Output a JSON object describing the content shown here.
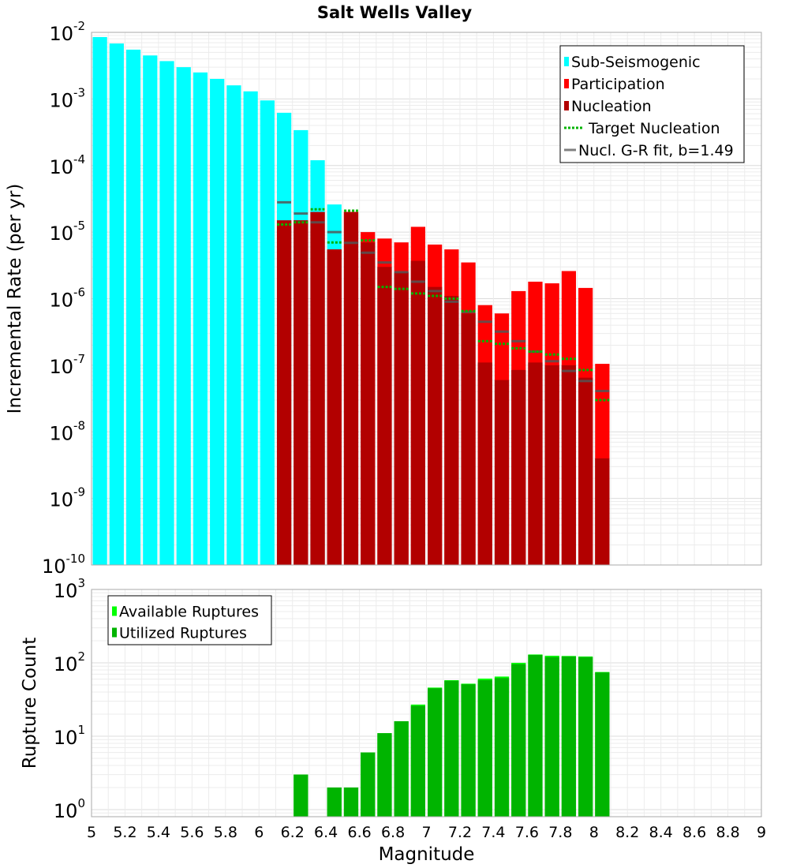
{
  "chart_data": [
    {
      "type": "bar",
      "title": "Salt Wells Valley",
      "xlabel": "Magnitude",
      "ylabel": "Incremental Rate (per yr)",
      "yscale": "log",
      "ylim": [
        1e-10,
        0.01
      ],
      "xlim": [
        5,
        9
      ],
      "bin_width": 0.1,
      "y_ticks": [
        {
          "base": "10",
          "exp": "-10"
        },
        {
          "base": "10",
          "exp": "-9"
        },
        {
          "base": "10",
          "exp": "-8"
        },
        {
          "base": "10",
          "exp": "-7"
        },
        {
          "base": "10",
          "exp": "-6"
        },
        {
          "base": "10",
          "exp": "-5"
        },
        {
          "base": "10",
          "exp": "-4"
        },
        {
          "base": "10",
          "exp": "-3"
        },
        {
          "base": "10",
          "exp": "-2"
        }
      ],
      "legend": [
        {
          "label": "Sub-Seismogenic",
          "color": "#00ffff",
          "kind": "bar"
        },
        {
          "label": "Participation",
          "color": "#ff0000",
          "kind": "bar"
        },
        {
          "label": "Nucleation",
          "color": "#b20000",
          "kind": "bar"
        },
        {
          "label": "Target Nucleation",
          "color": "#00b400",
          "kind": "dotted"
        },
        {
          "label": "Nucl. G-R fit, b=1.49",
          "color": "#808080",
          "kind": "line"
        }
      ],
      "series": [
        {
          "name": "Sub-Seismogenic",
          "color": "#00ffff",
          "x": [
            5.05,
            5.15,
            5.25,
            5.35,
            5.45,
            5.55,
            5.65,
            5.75,
            5.85,
            5.95,
            6.05,
            6.15,
            6.25,
            6.35,
            6.45
          ],
          "values": [
            0.0085,
            0.0068,
            0.0055,
            0.0045,
            0.0037,
            0.003,
            0.0025,
            0.002,
            0.0016,
            0.0013,
            0.00095,
            0.00062,
            0.00034,
            0.00012,
            2.6e-05
          ]
        },
        {
          "name": "Participation",
          "color": "#ff0000",
          "x": [
            6.15,
            6.25,
            6.35,
            6.45,
            6.55,
            6.65,
            6.75,
            6.85,
            6.95,
            7.05,
            7.15,
            7.25,
            7.35,
            7.45,
            7.55,
            7.65,
            7.75,
            7.85,
            7.95,
            8.05
          ],
          "values": [
            1.5e-05,
            1.5e-05,
            2e-05,
            5.5e-06,
            2e-05,
            1e-05,
            8e-06,
            7e-06,
            1.2e-05,
            6.5e-06,
            5.5e-06,
            3.5e-06,
            8e-07,
            6e-07,
            1.3e-06,
            1.8e-06,
            1.7e-06,
            2.6e-06,
            1.45e-06,
            1.05e-07
          ]
        },
        {
          "name": "Nucleation",
          "color": "#b20000",
          "x": [
            6.15,
            6.25,
            6.35,
            6.45,
            6.55,
            6.65,
            6.75,
            6.85,
            6.95,
            7.05,
            7.15,
            7.25,
            7.35,
            7.45,
            7.55,
            7.65,
            7.75,
            7.85,
            7.95,
            8.05
          ],
          "values": [
            1.5e-05,
            1.5e-05,
            2e-05,
            5.5e-06,
            2e-05,
            7e-06,
            3e-06,
            2.5e-06,
            3.7e-06,
            1.5e-06,
            1.1e-06,
            6e-07,
            1.1e-07,
            6e-08,
            8.5e-08,
            1.1e-07,
            1e-07,
            1e-07,
            6.5e-08,
            4e-09
          ]
        },
        {
          "name": "Target Nucleation",
          "color": "#00b400",
          "x": [
            6.15,
            6.25,
            6.35,
            6.45,
            6.55,
            6.65,
            6.75,
            6.85,
            6.95,
            7.05,
            7.15,
            7.25,
            7.35,
            7.45,
            7.55,
            7.65,
            7.75,
            7.85,
            7.95,
            8.05
          ],
          "values": [
            1.3e-05,
            1.4e-05,
            2.2e-05,
            7e-06,
            2.1e-05,
            7.5e-06,
            1.5e-06,
            1.4e-06,
            1.2e-06,
            1.1e-06,
            1e-06,
            6.5e-07,
            2.3e-07,
            2.1e-07,
            1.8e-07,
            1.6e-07,
            1.45e-07,
            1.25e-07,
            8.5e-08,
            3e-08
          ]
        },
        {
          "name": "Nucl. G-R fit, b=1.49",
          "color": "#808080",
          "x": [
            6.15,
            6.25,
            6.35,
            6.45,
            6.55,
            6.65,
            6.75,
            6.85,
            6.95,
            7.05,
            7.15,
            7.25,
            7.35,
            7.45,
            7.55,
            7.65,
            7.75,
            7.85,
            7.95,
            8.05
          ],
          "values": [
            2.8e-05,
            1.9e-05,
            1.4e-05,
            1e-05,
            6.9e-06,
            4.9e-06,
            3.5e-06,
            2.5e-06,
            1.8e-06,
            1.3e-06,
            9e-07,
            6.3e-07,
            4.5e-07,
            3.2e-07,
            2.3e-07,
            1.6e-07,
            1.15e-07,
            8.2e-08,
            5.8e-08,
            4.1e-08
          ]
        }
      ]
    },
    {
      "type": "bar",
      "xlabel": "Magnitude",
      "ylabel": "Rupture Count",
      "yscale": "log",
      "ylim": [
        0.8,
        1000
      ],
      "xlim": [
        5,
        9
      ],
      "bin_width": 0.1,
      "x_ticks": [
        "5",
        "5.2",
        "5.4",
        "5.6",
        "5.8",
        "6",
        "6.2",
        "6.4",
        "6.6",
        "6.8",
        "7",
        "7.2",
        "7.4",
        "7.6",
        "7.8",
        "8",
        "8.2",
        "8.4",
        "8.6",
        "8.8",
        "9"
      ],
      "y_ticks": [
        {
          "base": "10",
          "exp": "0"
        },
        {
          "base": "10",
          "exp": "1"
        },
        {
          "base": "10",
          "exp": "2"
        },
        {
          "base": "10",
          "exp": "3"
        }
      ],
      "legend": [
        {
          "label": "Available Ruptures",
          "color": "#00ff00",
          "kind": "bar"
        },
        {
          "label": "Utilized Ruptures",
          "color": "#00b400",
          "kind": "bar"
        }
      ],
      "series": [
        {
          "name": "Available Ruptures",
          "color": "#00ff00",
          "x": [
            6.25,
            6.45,
            6.55,
            6.65,
            6.75,
            6.85,
            6.95,
            7.05,
            7.15,
            7.25,
            7.35,
            7.45,
            7.55,
            7.65,
            7.75,
            7.85,
            7.95,
            8.05
          ],
          "values": [
            3,
            2,
            2,
            6,
            11,
            16,
            27,
            46,
            58,
            52,
            61,
            65,
            100,
            130,
            125,
            124,
            122,
            75
          ]
        },
        {
          "name": "Utilized Ruptures",
          "color": "#00b400",
          "x": [
            6.25,
            6.45,
            6.55,
            6.65,
            6.75,
            6.85,
            6.95,
            7.05,
            7.15,
            7.25,
            7.35,
            7.45,
            7.55,
            7.65,
            7.75,
            7.85,
            7.95,
            8.05
          ],
          "values": [
            3,
            2,
            2,
            6,
            11,
            16,
            26,
            45,
            57,
            51,
            58,
            62,
            96,
            128,
            120,
            122,
            120,
            74
          ]
        }
      ]
    }
  ]
}
